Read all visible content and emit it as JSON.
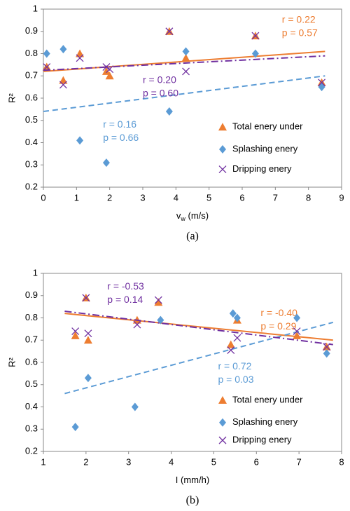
{
  "chart_data": [
    {
      "type": "scatter",
      "caption": "(a)",
      "y_label": "R²",
      "x_label_parts": [
        "v",
        "w",
        " (m/s)"
      ],
      "xlim": [
        0,
        9
      ],
      "xticks": [
        0,
        1,
        2,
        3,
        4,
        5,
        6,
        7,
        8,
        9
      ],
      "ylim": [
        0.2,
        1
      ],
      "yticks": [
        0.2,
        0.3,
        0.4,
        0.5,
        0.6,
        0.7,
        0.8,
        0.9,
        1
      ],
      "series": [
        {
          "name": "Total enery under",
          "color": "#ed7d31",
          "marker": "triangle",
          "x": [
            0.1,
            0.6,
            1.1,
            1.9,
            2.0,
            3.8,
            4.3,
            6.4,
            8.4
          ],
          "values": [
            0.74,
            0.68,
            0.8,
            0.72,
            0.7,
            0.9,
            0.78,
            0.88,
            0.67
          ],
          "trend": {
            "x": [
              0,
              8.5
            ],
            "y": [
              0.72,
              0.81
            ],
            "dash": "solid"
          },
          "r_label": "r = 0.22",
          "p_label": "p = 0.57"
        },
        {
          "name": "Splashing enery",
          "color": "#5b9bd5",
          "marker": "diamond",
          "x": [
            0.1,
            0.6,
            1.1,
            1.9,
            3.8,
            4.3,
            6.4,
            8.4
          ],
          "values": [
            0.8,
            0.82,
            0.41,
            0.31,
            0.54,
            0.81,
            0.8,
            0.65
          ],
          "trend": {
            "x": [
              0,
              8.5
            ],
            "y": [
              0.54,
              0.7
            ],
            "dash": "dash"
          },
          "r_label": "r = 0.16",
          "p_label": "p = 0.66"
        },
        {
          "name": "Dripping enery",
          "color": "#7030a0",
          "marker": "cross",
          "x": [
            0.1,
            0.6,
            1.1,
            1.9,
            2.0,
            3.8,
            4.3,
            6.4,
            8.4
          ],
          "values": [
            0.74,
            0.66,
            0.78,
            0.74,
            0.73,
            0.9,
            0.72,
            0.88,
            0.67
          ],
          "trend": {
            "x": [
              0,
              8.5
            ],
            "y": [
              0.725,
              0.79
            ],
            "dash": "dashdot"
          },
          "r_label": "r = 0.20",
          "p_label": "p = 0.60"
        }
      ]
    },
    {
      "type": "scatter",
      "caption": "(b)",
      "y_label": "R²",
      "x_label_parts": [
        "I (mm/h)"
      ],
      "xlim": [
        1,
        8
      ],
      "xticks": [
        1,
        2,
        3,
        4,
        5,
        6,
        7,
        8
      ],
      "ylim": [
        0.2,
        1
      ],
      "yticks": [
        0.2,
        0.3,
        0.4,
        0.5,
        0.6,
        0.7,
        0.8,
        0.9,
        1
      ],
      "series": [
        {
          "name": "Total enery under",
          "color": "#ed7d31",
          "marker": "triangle",
          "x": [
            1.75,
            2.0,
            2.05,
            3.2,
            3.7,
            5.4,
            5.55,
            6.95,
            7.65
          ],
          "values": [
            0.72,
            0.89,
            0.7,
            0.79,
            0.87,
            0.68,
            0.79,
            0.72,
            0.67
          ],
          "trend": {
            "x": [
              1.5,
              7.8
            ],
            "y": [
              0.82,
              0.7
            ],
            "dash": "solid"
          },
          "r_label": "r = -0.40",
          "p_label": "p = 0.29"
        },
        {
          "name": "Splashing enery",
          "color": "#5b9bd5",
          "marker": "diamond",
          "x": [
            1.75,
            2.05,
            3.15,
            3.75,
            5.45,
            5.55,
            6.95,
            7.65
          ],
          "values": [
            0.31,
            0.53,
            0.4,
            0.79,
            0.82,
            0.8,
            0.8,
            0.64
          ],
          "trend": {
            "x": [
              1.5,
              7.8
            ],
            "y": [
              0.46,
              0.78
            ],
            "dash": "dash"
          },
          "r_label": "r = 0.72",
          "p_label": "p = 0.03"
        },
        {
          "name": "Dripping enery",
          "color": "#7030a0",
          "marker": "cross",
          "x": [
            1.75,
            2.0,
            2.05,
            3.2,
            3.7,
            5.4,
            5.55,
            6.95,
            7.65
          ],
          "values": [
            0.74,
            0.89,
            0.73,
            0.77,
            0.88,
            0.655,
            0.71,
            0.74,
            0.67
          ],
          "trend": {
            "x": [
              1.5,
              7.8
            ],
            "y": [
              0.83,
              0.68
            ],
            "dash": "dashdot"
          },
          "r_label": "r = -0.53",
          "p_label": "p = 0.14"
        }
      ]
    }
  ]
}
